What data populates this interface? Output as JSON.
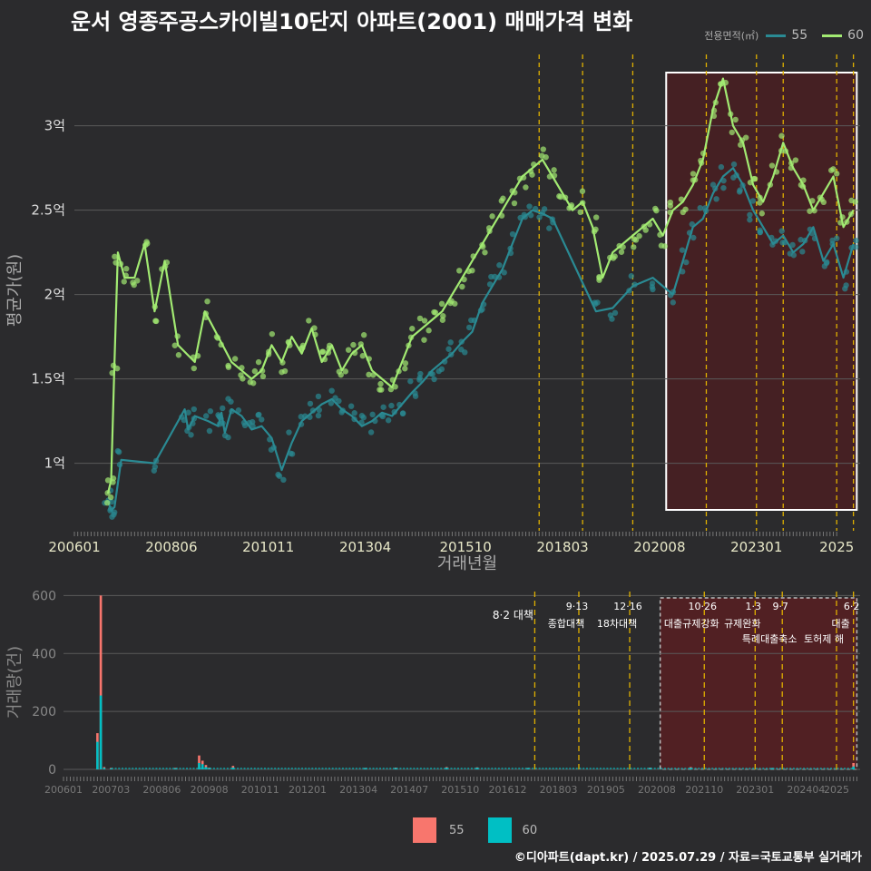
{
  "title": "운서 영종주공스카이빌10단지 아파트(2001) 매매가격 변화",
  "legend": {
    "title": "전용면적(㎡)",
    "items": [
      {
        "label": "55",
        "line_color": "#2a8a93",
        "bar_color": "#f8766d"
      },
      {
        "label": "60",
        "line_color": "#a2ea72",
        "bar_color": "#00bfc4"
      }
    ]
  },
  "credit": "©디아파트(dapt.kr) / 2025.07.29 / 자료=국토교통부 실거래가",
  "colors": {
    "background": "#2b2b2d",
    "grid": "#5a5a5a",
    "policy_line": "#e0b000",
    "highlight_fill": "#4a1f22",
    "highlight_stroke": "#ffffff",
    "series_55": "#2a8a93",
    "series_60": "#a2ea72",
    "bar_55": "#f8766d",
    "bar_60": "#00bfc4"
  },
  "chart_data": [
    {
      "type": "line",
      "title": "운서 영종주공스카이빌10단지 아파트(2001) 매매가격 변화",
      "xlabel": "거래년월",
      "ylabel": "평균가(원)",
      "x_ticks": [
        "200601",
        "200806",
        "201011",
        "201304",
        "201510",
        "201803",
        "202008",
        "202301",
        "2025"
      ],
      "y_ticks": [
        "1억",
        "1.5억",
        "2억",
        "2.5억",
        "3억"
      ],
      "y_tick_values": [
        1.0,
        1.5,
        2.0,
        2.5,
        3.0
      ],
      "xlim": [
        "2006-01",
        "2025-08"
      ],
      "ylim": [
        0.6,
        3.45
      ],
      "y_unit": "억",
      "grid": true,
      "legend_position": "top-right",
      "highlight_range": [
        "2020-10",
        "2025-07"
      ],
      "policy_dates": [
        "2017-08",
        "2018-09",
        "2019-12",
        "2021-10",
        "2023-01",
        "2023-09",
        "2025-01",
        "2025-06"
      ],
      "series": [
        {
          "name": "55",
          "color": "#2a8a93",
          "points": [
            [
              "2006-11",
              0.78
            ],
            [
              "2006-12",
              0.72
            ],
            [
              "2007-01",
              0.74
            ],
            [
              "2007-03",
              1.02
            ],
            [
              "2008-01",
              1.0
            ],
            [
              "2008-10",
              1.32
            ],
            [
              "2008-11",
              1.2
            ],
            [
              "2009-01",
              1.28
            ],
            [
              "2009-05",
              1.25
            ],
            [
              "2009-08",
              1.22
            ],
            [
              "2009-09",
              1.3
            ],
            [
              "2009-10",
              1.18
            ],
            [
              "2009-12",
              1.32
            ],
            [
              "2010-03",
              1.28
            ],
            [
              "2010-06",
              1.2
            ],
            [
              "2010-09",
              1.22
            ],
            [
              "2010-12",
              1.15
            ],
            [
              "2011-03",
              0.96
            ],
            [
              "2011-06",
              1.12
            ],
            [
              "2011-09",
              1.25
            ],
            [
              "2011-12",
              1.3
            ],
            [
              "2012-03",
              1.35
            ],
            [
              "2012-06",
              1.38
            ],
            [
              "2012-09",
              1.32
            ],
            [
              "2012-12",
              1.28
            ],
            [
              "2013-03",
              1.22
            ],
            [
              "2013-06",
              1.25
            ],
            [
              "2013-09",
              1.3
            ],
            [
              "2013-12",
              1.28
            ],
            [
              "2014-03",
              1.35
            ],
            [
              "2014-06",
              1.42
            ],
            [
              "2014-09",
              1.48
            ],
            [
              "2014-12",
              1.55
            ],
            [
              "2015-03",
              1.6
            ],
            [
              "2015-06",
              1.65
            ],
            [
              "2015-09",
              1.72
            ],
            [
              "2015-12",
              1.78
            ],
            [
              "2016-03",
              1.95
            ],
            [
              "2016-06",
              2.05
            ],
            [
              "2016-09",
              2.15
            ],
            [
              "2016-12",
              2.3
            ],
            [
              "2017-03",
              2.45
            ],
            [
              "2017-06",
              2.5
            ],
            [
              "2017-09",
              2.48
            ],
            [
              "2017-12",
              2.45
            ],
            [
              "2019-01",
              1.9
            ],
            [
              "2019-06",
              1.92
            ],
            [
              "2019-12",
              2.05
            ],
            [
              "2020-06",
              2.1
            ],
            [
              "2020-12",
              2.0
            ],
            [
              "2021-03",
              2.2
            ],
            [
              "2021-06",
              2.4
            ],
            [
              "2021-09",
              2.45
            ],
            [
              "2021-12",
              2.6
            ],
            [
              "2022-03",
              2.7
            ],
            [
              "2022-06",
              2.75
            ],
            [
              "2022-09",
              2.65
            ],
            [
              "2022-12",
              2.5
            ],
            [
              "2023-03",
              2.4
            ],
            [
              "2023-06",
              2.3
            ],
            [
              "2023-09",
              2.35
            ],
            [
              "2023-12",
              2.25
            ],
            [
              "2024-03",
              2.3
            ],
            [
              "2024-06",
              2.4
            ],
            [
              "2024-09",
              2.2
            ],
            [
              "2024-12",
              2.3
            ],
            [
              "2025-03",
              2.1
            ],
            [
              "2025-06",
              2.3
            ]
          ]
        },
        {
          "name": "60",
          "color": "#a2ea72",
          "points": [
            [
              "2006-11",
              0.82
            ],
            [
              "2006-12",
              0.9
            ],
            [
              "2007-01",
              1.6
            ],
            [
              "2007-02",
              2.25
            ],
            [
              "2007-04",
              2.1
            ],
            [
              "2007-07",
              2.1
            ],
            [
              "2007-10",
              2.3
            ],
            [
              "2008-01",
              1.9
            ],
            [
              "2008-04",
              2.2
            ],
            [
              "2008-08",
              1.7
            ],
            [
              "2009-01",
              1.6
            ],
            [
              "2009-04",
              1.9
            ],
            [
              "2009-08",
              1.75
            ],
            [
              "2009-12",
              1.6
            ],
            [
              "2010-03",
              1.55
            ],
            [
              "2010-06",
              1.5
            ],
            [
              "2010-09",
              1.55
            ],
            [
              "2010-12",
              1.7
            ],
            [
              "2011-03",
              1.6
            ],
            [
              "2011-06",
              1.75
            ],
            [
              "2011-09",
              1.65
            ],
            [
              "2011-12",
              1.8
            ],
            [
              "2012-03",
              1.6
            ],
            [
              "2012-06",
              1.7
            ],
            [
              "2012-09",
              1.55
            ],
            [
              "2012-12",
              1.65
            ],
            [
              "2013-03",
              1.7
            ],
            [
              "2013-06",
              1.55
            ],
            [
              "2013-09",
              1.5
            ],
            [
              "2013-12",
              1.45
            ],
            [
              "2014-03",
              1.6
            ],
            [
              "2014-06",
              1.75
            ],
            [
              "2014-09",
              1.8
            ],
            [
              "2014-12",
              1.85
            ],
            [
              "2015-03",
              1.9
            ],
            [
              "2015-06",
              2.0
            ],
            [
              "2015-09",
              2.1
            ],
            [
              "2015-12",
              2.2
            ],
            [
              "2016-03",
              2.3
            ],
            [
              "2016-06",
              2.4
            ],
            [
              "2016-09",
              2.5
            ],
            [
              "2016-12",
              2.6
            ],
            [
              "2017-03",
              2.7
            ],
            [
              "2017-06",
              2.75
            ],
            [
              "2017-09",
              2.8
            ],
            [
              "2017-12",
              2.7
            ],
            [
              "2018-03",
              2.6
            ],
            [
              "2018-06",
              2.5
            ],
            [
              "2018-09",
              2.55
            ],
            [
              "2018-12",
              2.4
            ],
            [
              "2019-03",
              2.1
            ],
            [
              "2019-06",
              2.25
            ],
            [
              "2019-09",
              2.3
            ],
            [
              "2019-12",
              2.35
            ],
            [
              "2020-03",
              2.4
            ],
            [
              "2020-06",
              2.45
            ],
            [
              "2020-09",
              2.35
            ],
            [
              "2020-12",
              2.5
            ],
            [
              "2021-03",
              2.55
            ],
            [
              "2021-06",
              2.65
            ],
            [
              "2021-09",
              2.8
            ],
            [
              "2021-12",
              3.1
            ],
            [
              "2022-03",
              3.28
            ],
            [
              "2022-06",
              3.0
            ],
            [
              "2022-09",
              2.9
            ],
            [
              "2022-12",
              2.65
            ],
            [
              "2023-03",
              2.55
            ],
            [
              "2023-06",
              2.7
            ],
            [
              "2023-09",
              2.9
            ],
            [
              "2023-12",
              2.75
            ],
            [
              "2024-03",
              2.65
            ],
            [
              "2024-06",
              2.5
            ],
            [
              "2024-09",
              2.6
            ],
            [
              "2024-12",
              2.7
            ],
            [
              "2025-03",
              2.4
            ],
            [
              "2025-06",
              2.5
            ]
          ]
        }
      ]
    },
    {
      "type": "bar",
      "ylabel": "거래량(건)",
      "x_ticks": [
        "200601",
        "200703",
        "200806",
        "200908",
        "201011",
        "201201",
        "201304",
        "201407",
        "201510",
        "201612",
        "201803",
        "201905",
        "202008",
        "202110",
        "202301",
        "202404",
        "2025"
      ],
      "y_ticks": [
        "0",
        "200",
        "400",
        "600"
      ],
      "y_tick_values": [
        0,
        200,
        400,
        600
      ],
      "ylim": [
        0,
        620
      ],
      "stacked": true,
      "grid": true,
      "legend_position": "bottom",
      "highlight_range": [
        "2020-09",
        "2025-07"
      ],
      "series": [
        {
          "name": "55",
          "color": "#f8766d",
          "values": [
            [
              "2006-11",
              125
            ],
            [
              "2006-12",
              600
            ],
            [
              "2007-01",
              8
            ],
            [
              "2007-03",
              5
            ],
            [
              "2008-10",
              5
            ],
            [
              "2009-05",
              48
            ],
            [
              "2009-06",
              30
            ],
            [
              "2009-07",
              15
            ],
            [
              "2009-08",
              6
            ],
            [
              "2010-03",
              12
            ],
            [
              "2013-06",
              5
            ],
            [
              "2014-03",
              6
            ],
            [
              "2015-06",
              8
            ],
            [
              "2016-03",
              7
            ],
            [
              "2017-06",
              5
            ],
            [
              "2020-06",
              6
            ],
            [
              "2021-06",
              8
            ],
            [
              "2023-06",
              5
            ],
            [
              "2025-06",
              22
            ]
          ]
        },
        {
          "name": "60",
          "color": "#00bfc4",
          "values": [
            [
              "2006-11",
              95
            ],
            [
              "2006-12",
              255
            ],
            [
              "2007-01",
              5
            ],
            [
              "2007-03",
              3
            ],
            [
              "2008-10",
              3
            ],
            [
              "2009-05",
              22
            ],
            [
              "2009-06",
              18
            ],
            [
              "2009-07",
              8
            ],
            [
              "2009-08",
              4
            ],
            [
              "2010-03",
              6
            ],
            [
              "2013-06",
              4
            ],
            [
              "2014-03",
              4
            ],
            [
              "2015-06",
              5
            ],
            [
              "2016-03",
              5
            ],
            [
              "2017-06",
              4
            ],
            [
              "2020-06",
              4
            ],
            [
              "2021-06",
              5
            ],
            [
              "2023-06",
              4
            ],
            [
              "2025-06",
              10
            ]
          ]
        }
      ],
      "annotations": [
        {
          "date": "2017-08",
          "line1": "8·2 대책",
          "line2": ""
        },
        {
          "date": "2018-09",
          "line1": "9·13",
          "line2": "종합대책"
        },
        {
          "date": "2019-12",
          "line1": "12·16",
          "line2": "18차대책"
        },
        {
          "date": "2021-10",
          "line1": "10·26",
          "line2": "대출규제강화"
        },
        {
          "date": "2023-01",
          "line1": "1·3",
          "line2": "규제완화"
        },
        {
          "date": "2023-09",
          "line1": "9·7",
          "line2": "특례대출축소"
        },
        {
          "date": "2025-01",
          "line1": "",
          "line2": "토허제 해"
        },
        {
          "date": "2025-06",
          "line1": "6·2",
          "line2": "대출"
        }
      ]
    }
  ]
}
